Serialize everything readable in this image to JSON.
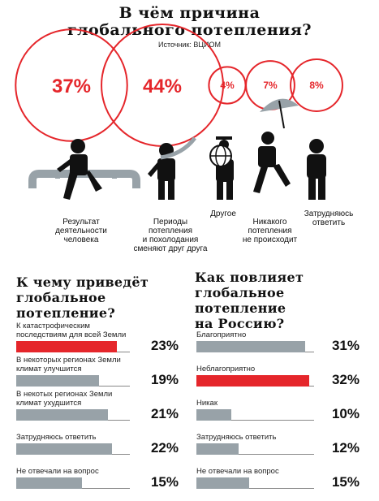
{
  "header": {
    "title_line1": "В чём причина",
    "title_line2": "глобального потепления?",
    "source": "Источник: ВЦИОМ"
  },
  "colors": {
    "accent": "#e5262b",
    "bar": "#98a2a8",
    "dark": "#111111"
  },
  "chart_data": [
    {
      "type": "bubble",
      "title": "В чём причина глобального потепления?",
      "categories": [
        "Результат деятельности человека",
        "Периоды потепления и похолодания сменяют друг друга",
        "Другое",
        "Никакого потепления не происходит",
        "Затрудняюсь ответить"
      ],
      "values": [
        37,
        44,
        4,
        7,
        8
      ],
      "value_labels": [
        "37%",
        "44%",
        "4%",
        "7%",
        "8%"
      ],
      "icons": [
        "person-on-pipe-icon",
        "person-with-scarf-icon",
        "person-with-globe-icon",
        "person-with-umbrella-icon",
        "person-standing-icon"
      ]
    },
    {
      "type": "bar",
      "title": "К чему приведёт глобальное потепление?",
      "categories": [
        "К катастрофическим последствиям для всей Земли",
        "В некоторых регионах Земли климат улучшится",
        "В некотых регионах Земли климат ухудшится",
        "Затрудняюсь ответить",
        "Не отвечали на вопрос"
      ],
      "values": [
        23,
        19,
        21,
        22,
        15
      ],
      "value_labels": [
        "23%",
        "19%",
        "21%",
        "22%",
        "15%"
      ],
      "highlight_index": 0
    },
    {
      "type": "bar",
      "title": "Как повлияет глобальное потепление на Россию?",
      "categories": [
        "Благоприятно",
        "Неблагоприятно",
        "Никак",
        "Затрудняюсь ответить",
        "Не отвечали на вопрос"
      ],
      "values": [
        31,
        32,
        10,
        12,
        15
      ],
      "value_labels": [
        "31%",
        "32%",
        "10%",
        "12%",
        "15%"
      ],
      "highlight_index": 1
    }
  ],
  "labels": {
    "cause1": [
      "Результат",
      "деятельности",
      "человека"
    ],
    "cause2": [
      "Периоды",
      "потепления",
      "и похолодания",
      "сменяют друг друга"
    ],
    "cause3": [
      "Другое"
    ],
    "cause4": [
      "Никакого",
      "потепления",
      "не происходит"
    ],
    "cause5": [
      "Затрудняюсь",
      "ответить"
    ]
  },
  "left": {
    "title_lines": [
      "К чему приведёт",
      "глобальное",
      "потепление?"
    ],
    "row_labels": [
      [
        "К катастрофическим",
        "последствиям для всей Земли"
      ],
      [
        "В некоторых регионах Земли",
        "климат улучшится"
      ],
      [
        "В некотых регионах Земли",
        "климат ухудшится"
      ],
      [
        "Затрудняюсь ответить"
      ],
      [
        "Не отвечали на вопрос"
      ]
    ]
  },
  "right": {
    "title_lines": [
      "Как повлияет",
      "глобальное",
      "потепление",
      "на Россию?"
    ],
    "row_labels": [
      [
        "Благоприятно"
      ],
      [
        "Неблагоприятно"
      ],
      [
        "Никак"
      ],
      [
        "Затрудняюсь ответить"
      ],
      [
        "Не отвечали на вопрос"
      ]
    ]
  }
}
